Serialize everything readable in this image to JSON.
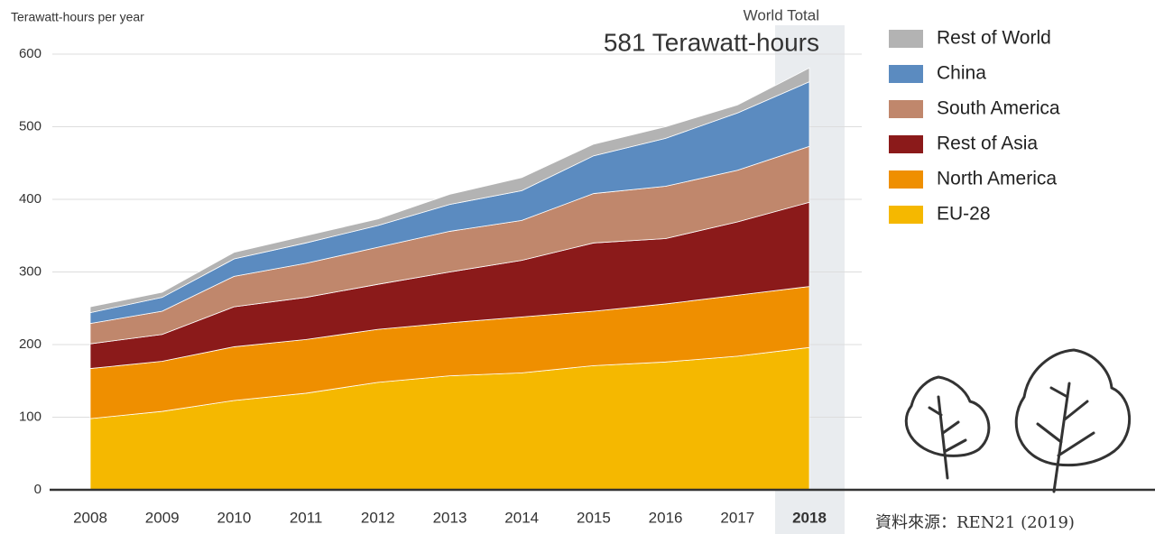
{
  "chart_data": {
    "type": "stacked-area",
    "y_axis_label": "Terawatt-hours per year",
    "annotation_title": "World Total",
    "annotation_value": "581 Terawatt-hours",
    "source": "資料來源：REN21 (2019)",
    "categories": [
      "2008",
      "2009",
      "2010",
      "2011",
      "2012",
      "2013",
      "2014",
      "2015",
      "2016",
      "2017",
      "2018"
    ],
    "highlight_category": "2018",
    "series": [
      {
        "name": "EU-28",
        "color": "#f5b800",
        "values": [
          98,
          108,
          123,
          133,
          148,
          157,
          161,
          171,
          176,
          184,
          196
        ]
      },
      {
        "name": "North America",
        "color": "#ef8f00",
        "values": [
          69,
          69,
          74,
          74,
          73,
          73,
          77,
          75,
          80,
          84,
          84
        ]
      },
      {
        "name": "Rest of Asia",
        "color": "#8b1a1a",
        "values": [
          34,
          37,
          55,
          58,
          62,
          70,
          78,
          94,
          90,
          101,
          116
        ]
      },
      {
        "name": "South America",
        "color": "#c0876c",
        "values": [
          28,
          32,
          42,
          47,
          51,
          56,
          55,
          68,
          72,
          71,
          77
        ]
      },
      {
        "name": "China",
        "color": "#5b8bc0",
        "values": [
          15,
          19,
          24,
          28,
          30,
          37,
          41,
          52,
          66,
          79,
          89
        ]
      },
      {
        "name": "Rest of World",
        "color": "#b3b3b3",
        "values": [
          8,
          7,
          9,
          10,
          9,
          14,
          18,
          16,
          16,
          11,
          19
        ]
      }
    ],
    "ylim": [
      0,
      600
    ],
    "yticks": [
      0,
      100,
      200,
      300,
      400,
      500,
      600
    ],
    "grid": true
  }
}
